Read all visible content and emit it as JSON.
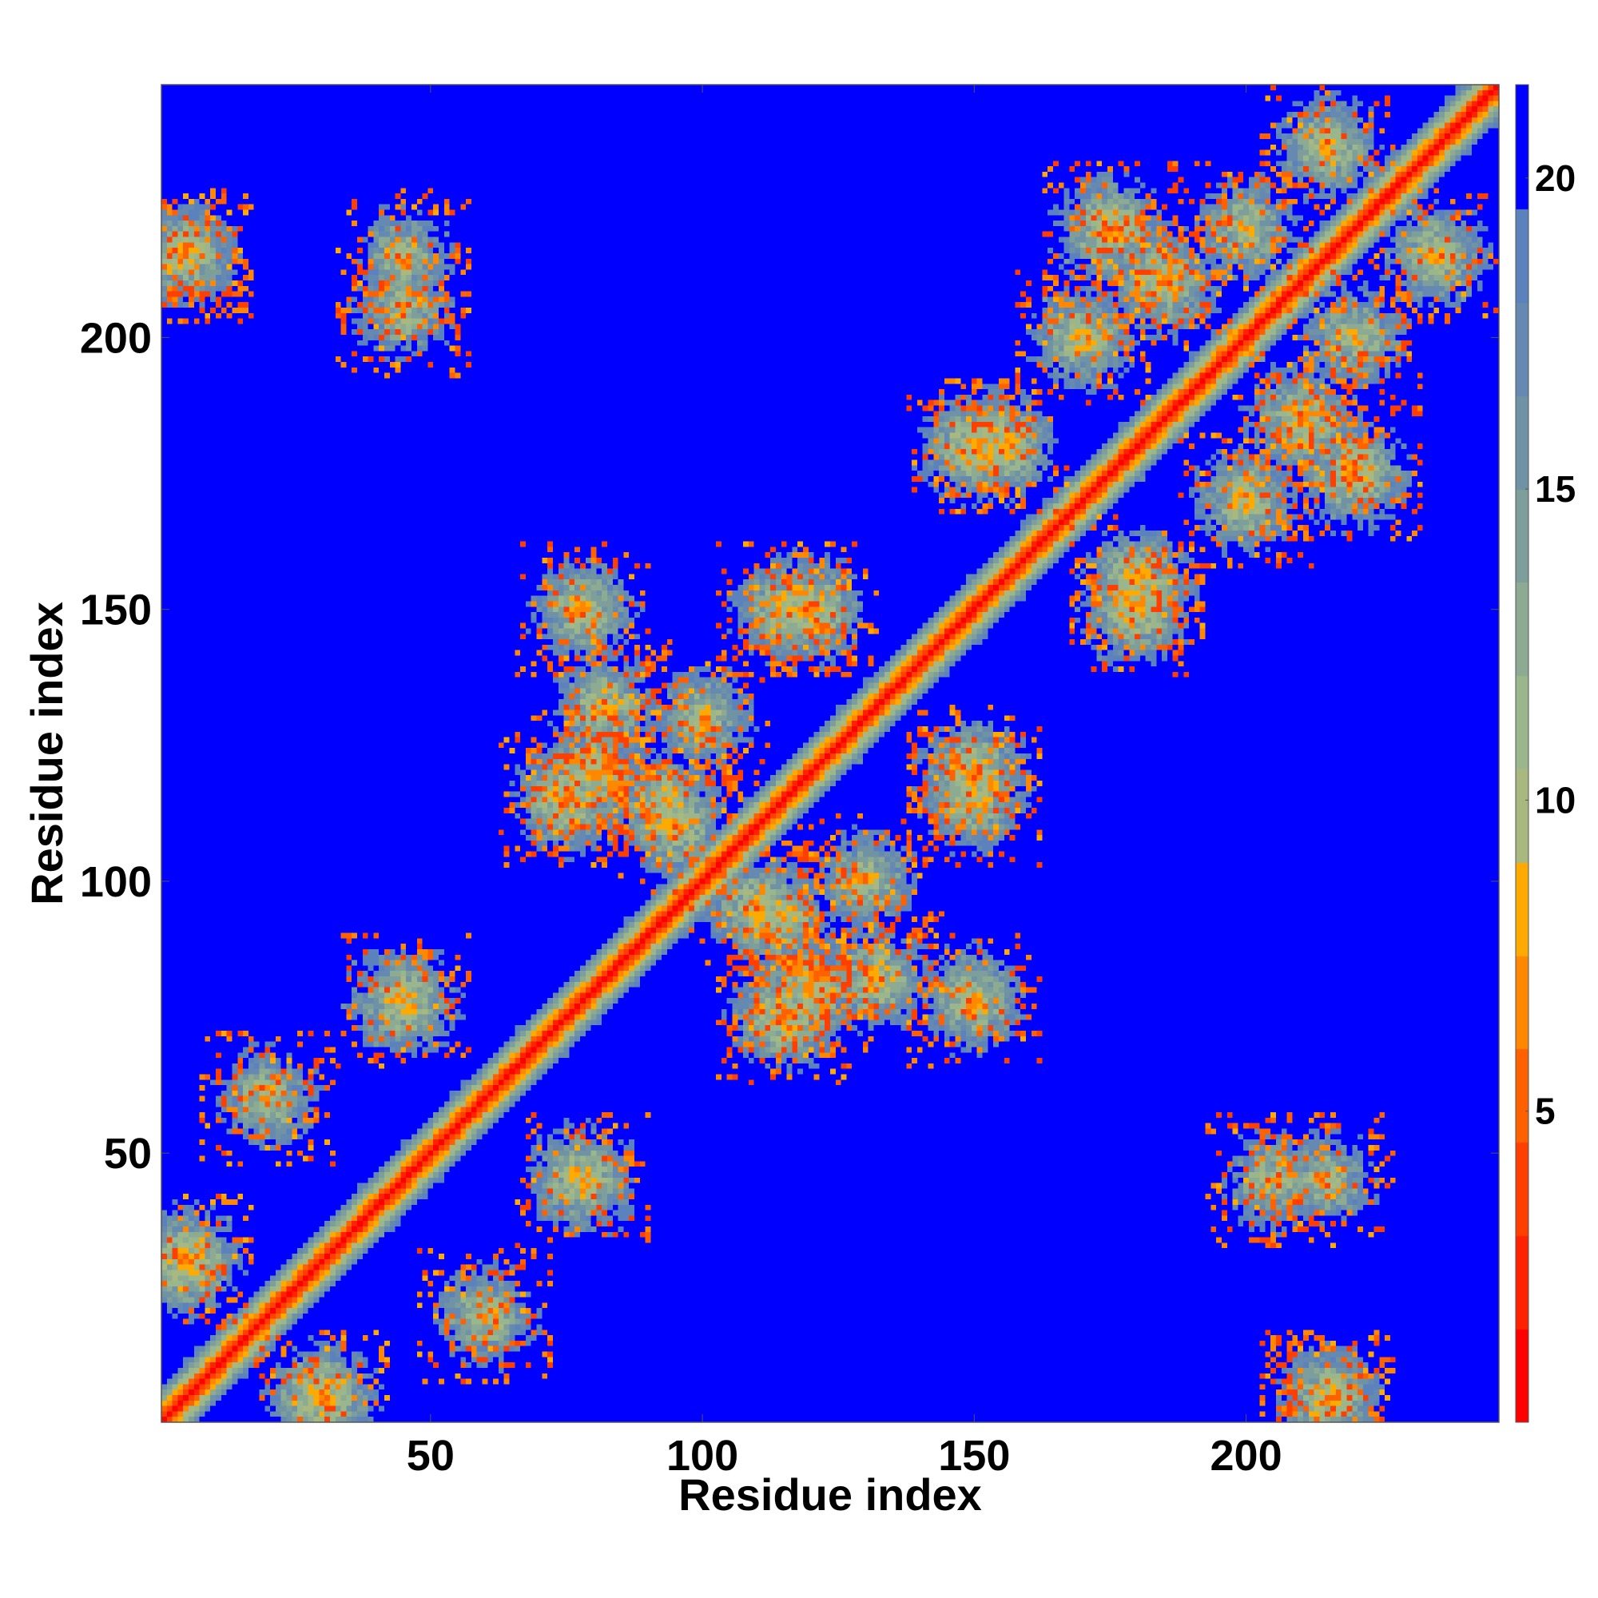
{
  "chart_data": {
    "type": "heatmap",
    "title": "",
    "xlabel": "Residue index",
    "ylabel": "Residue index",
    "n_residues": 246,
    "xlim": [
      1,
      246
    ],
    "ylim": [
      1,
      246
    ],
    "x_ticks": [
      50,
      100,
      150,
      200
    ],
    "y_ticks": [
      50,
      100,
      150,
      200
    ],
    "colorbar": {
      "ticks": [
        5,
        10,
        15,
        20
      ],
      "range": [
        0,
        21.5
      ],
      "bins": [
        {
          "upper": 1.5,
          "color": "#ff0000"
        },
        {
          "upper": 3.0,
          "color": "#ff2200"
        },
        {
          "upper": 4.5,
          "color": "#ff3f00"
        },
        {
          "upper": 6.0,
          "color": "#ff6000"
        },
        {
          "upper": 7.5,
          "color": "#ff8800"
        },
        {
          "upper": 9.0,
          "color": "#ffaa00"
        },
        {
          "upper": 10.5,
          "color": "#a8b87e"
        },
        {
          "upper": 12.0,
          "color": "#9ab68c"
        },
        {
          "upper": 13.5,
          "color": "#8cab92"
        },
        {
          "upper": 15.0,
          "color": "#7d9e9a"
        },
        {
          "upper": 16.5,
          "color": "#6f92a4"
        },
        {
          "upper": 18.0,
          "color": "#6589b0"
        },
        {
          "upper": 19.5,
          "color": "#5b82bc"
        },
        {
          "upper": 21.5,
          "color": "#0000ff"
        }
      ]
    },
    "background_value": 21,
    "diagonal": {
      "band_width": 4,
      "value_on_diagonal": 0.5,
      "gradient_per_residue": 2.8
    },
    "contacts": [
      {
        "i": 5,
        "j": 30,
        "strength": 0.9
      },
      {
        "i": 20,
        "j": 60,
        "strength": 0.6
      },
      {
        "i": 45,
        "j": 78,
        "strength": 0.8
      },
      {
        "i": 75,
        "j": 115,
        "strength": 0.8
      },
      {
        "i": 78,
        "j": 150,
        "strength": 0.7
      },
      {
        "i": 82,
        "j": 132,
        "strength": 0.7
      },
      {
        "i": 93,
        "j": 115,
        "strength": 0.6
      },
      {
        "i": 110,
        "j": 95,
        "strength": 0.7
      },
      {
        "i": 115,
        "j": 150,
        "strength": 0.7
      },
      {
        "i": 120,
        "j": 80,
        "strength": 0.7
      },
      {
        "i": 130,
        "j": 100,
        "strength": 0.6
      },
      {
        "i": 150,
        "j": 180,
        "strength": 0.8
      },
      {
        "i": 150,
        "j": 120,
        "strength": 0.8
      },
      {
        "i": 175,
        "j": 220,
        "strength": 0.8
      },
      {
        "i": 180,
        "j": 155,
        "strength": 0.8
      },
      {
        "i": 200,
        "j": 170,
        "strength": 0.7
      },
      {
        "i": 210,
        "j": 185,
        "strength": 0.8
      },
      {
        "i": 220,
        "j": 200,
        "strength": 0.6
      },
      {
        "i": 235,
        "j": 215,
        "strength": 0.7
      },
      {
        "i": 45,
        "j": 205,
        "strength": 0.5
      },
      {
        "i": 215,
        "j": 45,
        "strength": 0.5
      },
      {
        "i": 5,
        "j": 215,
        "strength": 0.6
      },
      {
        "i": 215,
        "j": 5,
        "strength": 0.6
      }
    ]
  }
}
